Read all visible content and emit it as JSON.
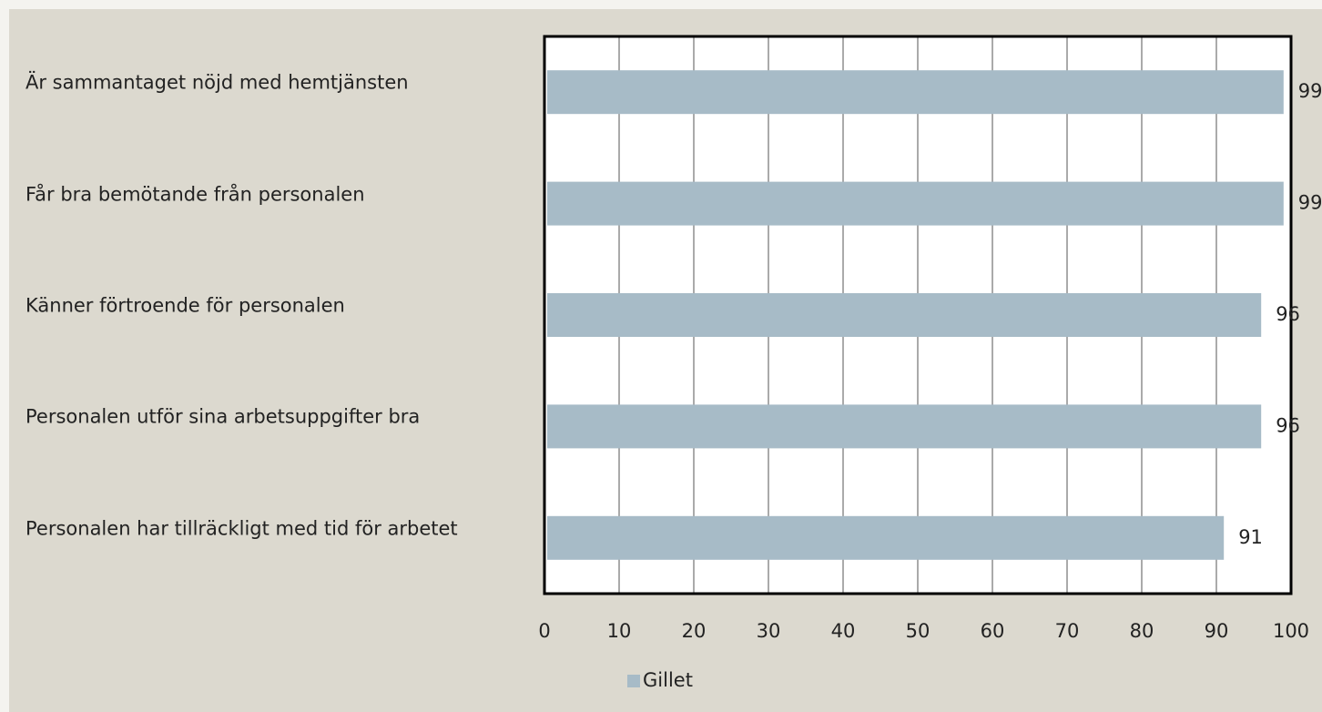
{
  "chart_data": {
    "type": "bar",
    "orientation": "horizontal",
    "categories": [
      "Är sammantaget nöjd med hemtjänsten",
      "Får bra bemötande från personalen",
      "Känner förtroende för personalen",
      "Personalen utför sina arbetsuppgifter bra",
      "Personalen har tillräckligt med tid för arbetet"
    ],
    "series": [
      {
        "name": "Gillet",
        "color": "#a7bbc7",
        "values": [
          99,
          99,
          96,
          96,
          91
        ]
      }
    ],
    "xlim": [
      0,
      100
    ],
    "xticks": [
      0,
      10,
      20,
      30,
      40,
      50,
      60,
      70,
      80,
      90,
      100
    ],
    "grid": true,
    "legend": "bottom"
  }
}
